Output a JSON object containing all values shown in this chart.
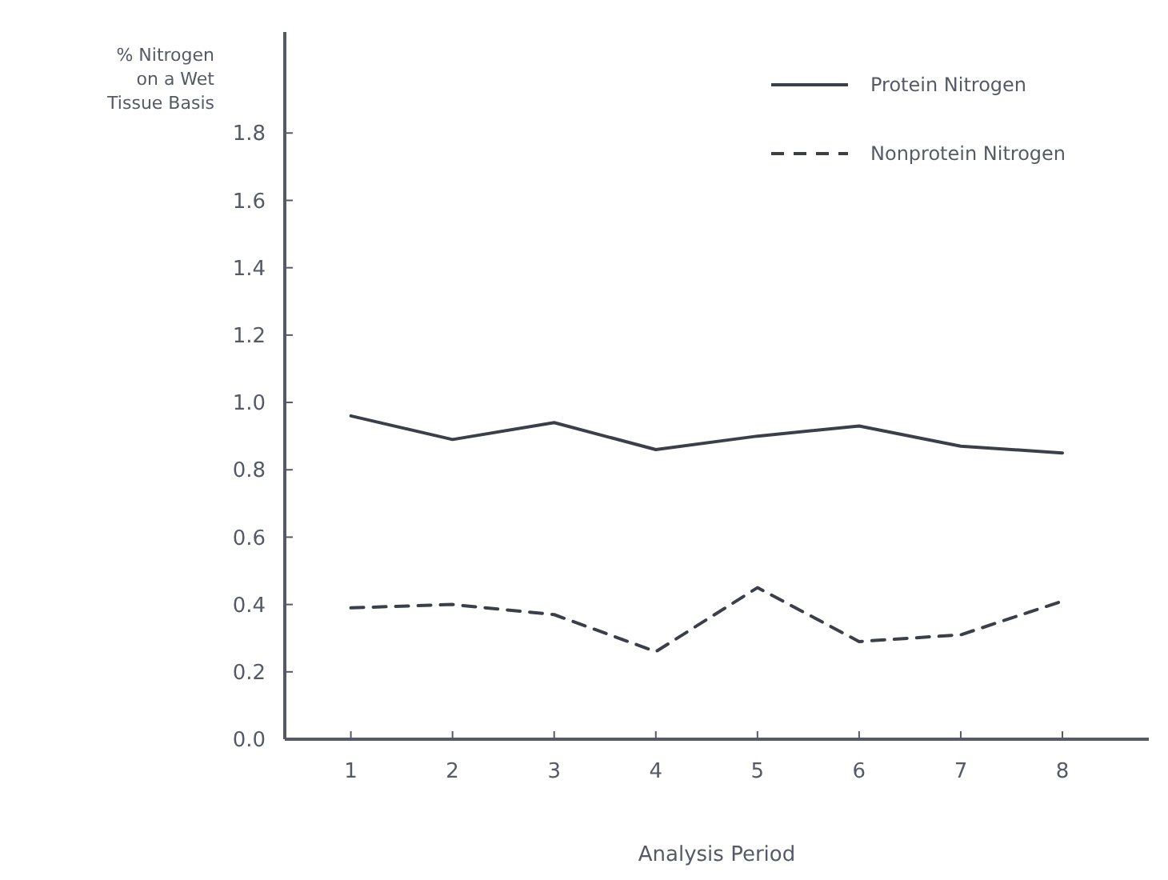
{
  "chart_data": {
    "type": "line",
    "xlabel": "Analysis Period",
    "ylabel": "% Nitrogen on a Wet Tissue Basis",
    "x": [
      1,
      2,
      3,
      4,
      5,
      6,
      7,
      8
    ],
    "series": [
      {
        "name": "Protein Nitrogen",
        "color": "#3a3f4a",
        "line_style": "solid",
        "values": [
          0.96,
          0.89,
          0.94,
          0.86,
          0.9,
          0.93,
          0.87,
          0.85
        ]
      },
      {
        "name": "Nonprotein Nitrogen",
        "color": "#3a3f4a",
        "line_style": "dashed",
        "values": [
          0.39,
          0.4,
          0.37,
          0.26,
          0.45,
          0.29,
          0.31,
          0.41
        ]
      }
    ],
    "xlim": [
      0.35,
      8.85
    ],
    "xticks": [
      1,
      2,
      3,
      4,
      5,
      6,
      7,
      8
    ],
    "ylim": [
      0,
      2.1
    ],
    "yticks": [
      {
        "value": 0,
        "label": "0.0"
      },
      {
        "value": 0.2,
        "label": "0.2"
      },
      {
        "value": 0.4,
        "label": "0.4"
      },
      {
        "value": 0.6,
        "label": "0.6"
      },
      {
        "value": 0.8,
        "label": "0.8"
      },
      {
        "value": 1,
        "label": "1.0"
      },
      {
        "value": 1.2,
        "label": "1.2"
      },
      {
        "value": 1.4,
        "label": "1.4"
      },
      {
        "value": 1.6,
        "label": "1.6"
      },
      {
        "value": 1.8,
        "label": "1.8"
      }
    ],
    "legend": "top right",
    "grid": false,
    "marker": "none"
  }
}
